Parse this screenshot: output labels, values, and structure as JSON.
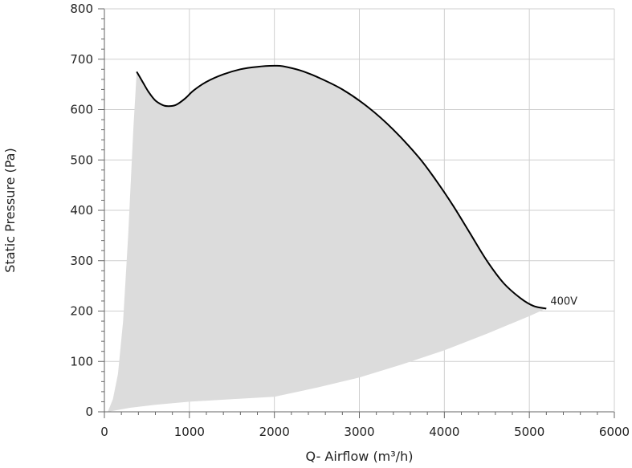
{
  "chart_data": {
    "type": "area",
    "xlabel": "Q- Airflow (m³/h)",
    "ylabel": "Static Pressure (Pa)",
    "xlim": [
      0,
      6000
    ],
    "ylim": [
      0,
      800
    ],
    "x_ticks": [
      0,
      1000,
      2000,
      3000,
      4000,
      5000,
      6000
    ],
    "y_ticks": [
      0,
      100,
      200,
      300,
      400,
      500,
      600,
      700,
      800
    ],
    "grid": true,
    "series": [
      {
        "name": "400V",
        "x": [
          380,
          450,
          520,
          600,
          700,
          780,
          850,
          950,
          1050,
          1200,
          1400,
          1600,
          1800,
          2000,
          2100,
          2300,
          2500,
          2800,
          3100,
          3400,
          3700,
          3900,
          4100,
          4300,
          4500,
          4700,
          4900,
          5050,
          5200
        ],
        "y": [
          675,
          655,
          635,
          618,
          608,
          607,
          610,
          622,
          638,
          655,
          670,
          680,
          685,
          687,
          686,
          678,
          665,
          640,
          605,
          560,
          505,
          460,
          410,
          355,
          300,
          255,
          225,
          210,
          205
        ]
      }
    ],
    "operating_area": {
      "lower_boundary": {
        "x": [
          40,
          300,
          600,
          1000,
          1500,
          2000,
          2500,
          3000,
          3500,
          4000,
          4500,
          5000,
          5200
        ],
        "y": [
          0,
          8,
          14,
          20,
          25,
          30,
          48,
          68,
          94,
          122,
          155,
          190,
          205
        ]
      },
      "left_boundary": {
        "x": [
          40,
          100,
          160,
          220,
          280,
          340,
          380
        ],
        "y": [
          0,
          25,
          75,
          180,
          350,
          560,
          675
        ]
      },
      "color": "#dcdcdc"
    },
    "colors": {
      "curve": "#000000",
      "area": "#dcdcdc",
      "grid": "#cfcfcf",
      "axis": "#666666"
    }
  }
}
